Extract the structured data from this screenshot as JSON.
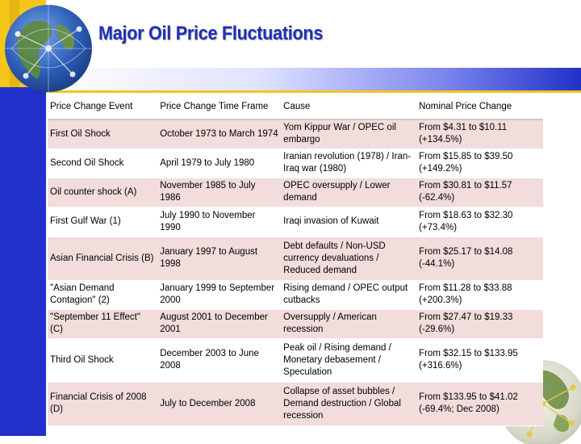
{
  "slide": {
    "title": "Major Oil Price Fluctuations"
  },
  "colors": {
    "title": "#1e2fb4",
    "left_bar_top": "#f5c518",
    "left_bar_bottom": "#2130c8",
    "row_shade": "#f2dcdc"
  },
  "icons": {
    "top_left": "globe-icon",
    "bottom_right": "globe-icon"
  },
  "table": {
    "headers": [
      "Price Change Event",
      "Price Change Time Frame",
      "Cause",
      "Nominal Price Change"
    ],
    "rows": [
      [
        "First Oil Shock",
        "October 1973 to March 1974",
        "Yom Kippur War / OPEC oil embargo",
        "From $4.31 to $10.11 (+134.5%)"
      ],
      [
        "Second Oil Shock",
        "April 1979 to July 1980",
        "Iranian revolution (1978) / Iran-Iraq war (1980)",
        "From $15.85 to $39.50 (+149.2%)"
      ],
      [
        "Oil counter shock (A)",
        "November 1985 to July 1986",
        "OPEC oversupply / Lower demand",
        "From $30.81 to $11.57 (-62.4%)"
      ],
      [
        "First Gulf War (1)",
        "July 1990 to November 1990",
        "Iraqi invasion of Kuwait",
        "From $18.63 to $32.30 (+73.4%)"
      ],
      [
        "Asian Financial Crisis (B)",
        "January 1997 to August 1998",
        "Debt defaults / Non-USD currency devaluations / Reduced demand",
        "From $25.17 to $14.08 (-44.1%)"
      ],
      [
        "\"Asian Demand Contagion\" (2)",
        "January 1999 to September 2000",
        "Rising demand / OPEC output cutbacks",
        "From $11.28 to $33.88 (+200.3%)"
      ],
      [
        "\"September 11 Effect\" (C)",
        "August 2001 to December 2001",
        "Oversupply / American recession",
        "From $27.47 to $19.33 (-29.6%)"
      ],
      [
        "Third Oil Shock",
        "December 2003 to June 2008",
        "Peak oil / Rising demand / Monetary debasement / Speculation",
        "From $32.15 to $133.95 (+316.6%)"
      ],
      [
        "Financial Crisis of 2008 (D)",
        "July to December 2008",
        "Collapse of asset bubbles / Demand destruction / Global recession",
        "From $133.95 to $41.02 (-69.4%; Dec 2008)"
      ]
    ]
  }
}
